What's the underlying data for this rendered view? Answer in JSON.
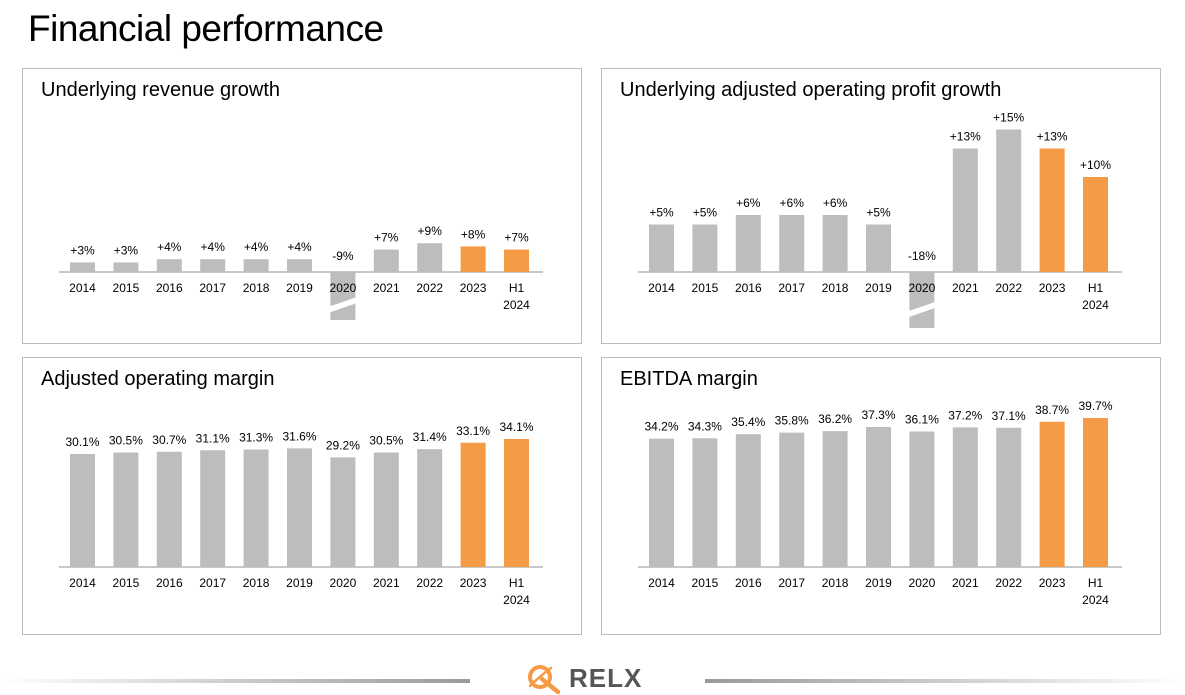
{
  "page": {
    "title": "Financial performance"
  },
  "colors": {
    "bar": "#bdbdbd",
    "highlight": "#f59a45",
    "axis": "#a6a6a6",
    "text": "#000000"
  },
  "logo": {
    "text": "RELX",
    "icon": "relx-logo-icon"
  },
  "chart_data": [
    {
      "id": "rev",
      "type": "bar",
      "title": "Underlying revenue growth",
      "categories": [
        "2014",
        "2015",
        "2016",
        "2017",
        "2018",
        "2019",
        "2020",
        "2021",
        "2022",
        "2023",
        "H1 2024"
      ],
      "values": [
        3,
        3,
        4,
        4,
        4,
        4,
        -9,
        7,
        9,
        8,
        7
      ],
      "labels": [
        "+3%",
        "+3%",
        "+4%",
        "+4%",
        "+4%",
        "+4%",
        "-9%",
        "+7%",
        "+9%",
        "+8%",
        "+7%"
      ],
      "highlighted": [
        "2023",
        "H1 2024"
      ],
      "broken_bars": [
        "2020"
      ],
      "grid": false,
      "legend": "none"
    },
    {
      "id": "op",
      "type": "bar",
      "title": "Underlying adjusted operating profit growth",
      "categories": [
        "2014",
        "2015",
        "2016",
        "2017",
        "2018",
        "2019",
        "2020",
        "2021",
        "2022",
        "2023",
        "H1 2024"
      ],
      "values": [
        5,
        5,
        6,
        6,
        6,
        5,
        -18,
        13,
        15,
        13,
        10
      ],
      "labels": [
        "+5%",
        "+5%",
        "+6%",
        "+6%",
        "+6%",
        "+5%",
        "-18%",
        "+13%",
        "+15%",
        "+13%",
        "+10%"
      ],
      "highlighted": [
        "2023",
        "H1 2024"
      ],
      "broken_bars": [
        "2020"
      ],
      "grid": false,
      "legend": "none"
    },
    {
      "id": "am",
      "type": "bar",
      "title": "Adjusted operating margin",
      "categories": [
        "2014",
        "2015",
        "2016",
        "2017",
        "2018",
        "2019",
        "2020",
        "2021",
        "2022",
        "2023",
        "H1 2024"
      ],
      "values": [
        30.1,
        30.5,
        30.7,
        31.1,
        31.3,
        31.6,
        29.2,
        30.5,
        31.4,
        33.1,
        34.1
      ],
      "labels": [
        "30.1%",
        "30.5%",
        "30.7%",
        "31.1%",
        "31.3%",
        "31.6%",
        "29.2%",
        "30.5%",
        "31.4%",
        "33.1%",
        "34.1%"
      ],
      "highlighted": [
        "2023",
        "H1 2024"
      ],
      "broken_bars": [],
      "grid": false,
      "legend": "none"
    },
    {
      "id": "eb",
      "type": "bar",
      "title": "EBITDA margin",
      "categories": [
        "2014",
        "2015",
        "2016",
        "2017",
        "2018",
        "2019",
        "2020",
        "2021",
        "2022",
        "2023",
        "H1 2024"
      ],
      "values": [
        34.2,
        34.3,
        35.4,
        35.8,
        36.2,
        37.3,
        36.1,
        37.2,
        37.1,
        38.7,
        39.7
      ],
      "labels": [
        "34.2%",
        "34.3%",
        "35.4%",
        "35.8%",
        "36.2%",
        "37.3%",
        "36.1%",
        "37.2%",
        "37.1%",
        "38.7%",
        "39.7%"
      ],
      "highlighted": [
        "2023",
        "H1 2024"
      ],
      "broken_bars": [],
      "grid": false,
      "legend": "none"
    }
  ]
}
